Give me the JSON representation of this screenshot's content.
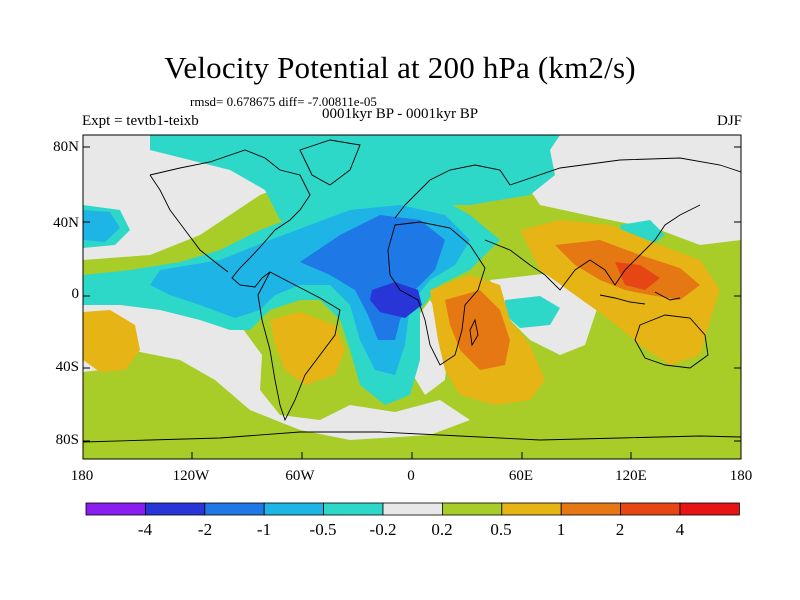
{
  "title": "Velocity Potential at 200 hPa (km2/s)",
  "subtitle": "rmsd= 0.678675  diff= -7.00811e-05",
  "center_label": "0001kyr BP - 0001kyr BP",
  "left_label": "Expt = tevtb1-teixb",
  "right_label": "DJF",
  "map": {
    "lat_ticks": [
      "80N",
      "40N",
      "0",
      "40S",
      "80S"
    ],
    "lon_ticks": [
      "180",
      "120W",
      "60W",
      "0",
      "60E",
      "120E",
      "180"
    ]
  },
  "colorbar": {
    "labels": [
      "-4",
      "-2",
      "-1",
      "-0.5",
      "-0.2",
      "0.2",
      "0.5",
      "1",
      "2",
      "4"
    ],
    "colors": [
      "#8a1ef0",
      "#2836d8",
      "#1e78e6",
      "#1eb4e6",
      "#2ed8c8",
      "#e8e8e8",
      "#a8cc28",
      "#e6b414",
      "#e67814",
      "#e64614",
      "#e61414"
    ]
  }
}
